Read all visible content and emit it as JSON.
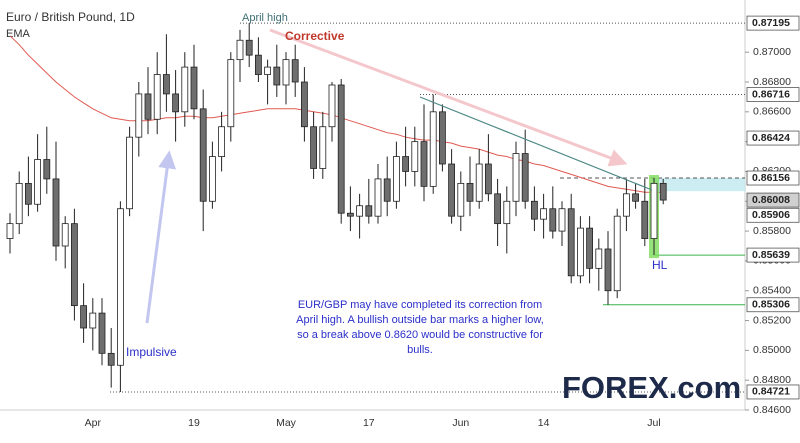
{
  "chart_data": {
    "type": "candlestick",
    "title": "Euro / British Pound, 1D",
    "indicator_label": "EMA",
    "categories": [
      null,
      null,
      null,
      null,
      null,
      null,
      null,
      null,
      null,
      "Apr",
      null,
      null,
      null,
      null,
      null,
      null,
      null,
      null,
      null,
      null,
      "19",
      null,
      null,
      null,
      null,
      null,
      null,
      null,
      null,
      null,
      "May",
      null,
      null,
      null,
      null,
      null,
      null,
      null,
      null,
      "17",
      null,
      null,
      null,
      null,
      null,
      null,
      null,
      null,
      null,
      "Jun",
      null,
      null,
      null,
      null,
      null,
      null,
      null,
      null,
      "14",
      null,
      null,
      null,
      null,
      null,
      null,
      null,
      null,
      null,
      null,
      null,
      "Jul",
      null
    ],
    "open": [
      0.8575,
      0.8585,
      0.8612,
      0.8598,
      0.8628,
      0.8615,
      0.857,
      0.8585,
      0.853,
      0.8515,
      0.8525,
      0.8498,
      0.849,
      0.8595,
      0.8643,
      0.8672,
      0.8655,
      0.8685,
      0.8672,
      0.866,
      0.869,
      0.8662,
      0.86,
      0.863,
      0.865,
      0.8695,
      0.8708,
      0.8698,
      0.8685,
      0.869,
      0.8678,
      0.8695,
      0.868,
      0.865,
      0.8622,
      0.865,
      0.8678,
      0.8592,
      0.859,
      0.8597,
      0.859,
      0.8615,
      0.86,
      0.863,
      0.862,
      0.864,
      0.861,
      0.866,
      0.8625,
      0.859,
      0.8612,
      0.86,
      0.8625,
      0.8605,
      0.8585,
      0.86,
      0.8632,
      0.86,
      0.8588,
      0.8595,
      0.858,
      0.8595,
      0.855,
      0.8582,
      0.8555,
      0.8568,
      0.854,
      0.859,
      0.8605,
      0.86,
      0.8575,
      0.8612
    ],
    "high": [
      0.8592,
      0.862,
      0.863,
      0.8645,
      0.865,
      0.864,
      0.859,
      0.8595,
      0.8545,
      0.8535,
      0.8535,
      0.8515,
      0.86,
      0.865,
      0.868,
      0.869,
      0.87,
      0.8712,
      0.8688,
      0.87,
      0.8705,
      0.8675,
      0.864,
      0.866,
      0.87,
      0.8715,
      0.87195,
      0.871,
      0.8695,
      0.8705,
      0.87,
      0.8705,
      0.869,
      0.866,
      0.866,
      0.868,
      0.8682,
      0.861,
      0.8605,
      0.8615,
      0.8625,
      0.863,
      0.864,
      0.865,
      0.865,
      0.8665,
      0.86716,
      0.8665,
      0.8635,
      0.862,
      0.863,
      0.8635,
      0.8645,
      0.8615,
      0.861,
      0.864,
      0.8648,
      0.861,
      0.8605,
      0.861,
      0.86,
      0.8605,
      0.859,
      0.859,
      0.8575,
      0.858,
      0.8595,
      0.8615,
      0.8612,
      0.8615,
      0.86156,
      0.8615
    ],
    "low": [
      0.8565,
      0.8578,
      0.859,
      0.8593,
      0.8605,
      0.856,
      0.8555,
      0.852,
      0.8505,
      0.85,
      0.849,
      0.8475,
      0.84721,
      0.859,
      0.863,
      0.8645,
      0.8645,
      0.866,
      0.864,
      0.865,
      0.8655,
      0.858,
      0.8595,
      0.862,
      0.864,
      0.868,
      0.869,
      0.868,
      0.8665,
      0.867,
      0.8665,
      0.867,
      0.864,
      0.8615,
      0.8615,
      0.864,
      0.8585,
      0.858,
      0.8575,
      0.8585,
      0.8585,
      0.859,
      0.8595,
      0.861,
      0.861,
      0.86,
      0.8605,
      0.862,
      0.8585,
      0.858,
      0.859,
      0.8595,
      0.86,
      0.857,
      0.8565,
      0.859,
      0.8595,
      0.858,
      0.8575,
      0.8575,
      0.857,
      0.8545,
      0.8545,
      0.8545,
      0.854,
      0.85306,
      0.8535,
      0.858,
      0.8595,
      0.857,
      0.85639,
      0.8598
    ],
    "close": [
      0.8585,
      0.8612,
      0.8598,
      0.8628,
      0.8615,
      0.857,
      0.8585,
      0.853,
      0.8515,
      0.8525,
      0.8498,
      0.849,
      0.8595,
      0.8643,
      0.8672,
      0.8655,
      0.8685,
      0.8672,
      0.866,
      0.869,
      0.8662,
      0.86,
      0.863,
      0.865,
      0.8695,
      0.8708,
      0.8698,
      0.8685,
      0.869,
      0.8678,
      0.8695,
      0.868,
      0.865,
      0.8622,
      0.865,
      0.8678,
      0.8592,
      0.859,
      0.8597,
      0.859,
      0.8615,
      0.86,
      0.863,
      0.862,
      0.864,
      0.861,
      0.866,
      0.8625,
      0.859,
      0.8612,
      0.86,
      0.8625,
      0.8605,
      0.8585,
      0.86,
      0.8632,
      0.86,
      0.8588,
      0.8595,
      0.858,
      0.8595,
      0.855,
      0.8582,
      0.8555,
      0.8568,
      0.854,
      0.859,
      0.8605,
      0.86,
      0.8575,
      0.8612,
      0.86008
    ],
    "up_color": "#ffffff",
    "down_color": "#6e6e6e",
    "ema": {
      "color": "#e05a52",
      "values": [
        0.8711,
        0.8705,
        0.8698,
        0.8692,
        0.8686,
        0.868,
        0.8675,
        0.867,
        0.8666,
        0.8662,
        0.8659,
        0.8656,
        0.8655,
        0.8654,
        0.8654,
        0.8654,
        0.8655,
        0.8656,
        0.8656,
        0.8657,
        0.8657,
        0.8656,
        0.8656,
        0.8657,
        0.8658,
        0.8659,
        0.866,
        0.8661,
        0.8662,
        0.8662,
        0.8662,
        0.8662,
        0.8661,
        0.866,
        0.8659,
        0.8658,
        0.8656,
        0.8654,
        0.8652,
        0.865,
        0.8648,
        0.8646,
        0.8645,
        0.8643,
        0.8642,
        0.8641,
        0.8641,
        0.864,
        0.8639,
        0.8637,
        0.8636,
        0.8635,
        0.8633,
        0.8631,
        0.863,
        0.8628,
        0.8627,
        0.8625,
        0.8624,
        0.8622,
        0.862,
        0.8618,
        0.8616,
        0.8614,
        0.8612,
        0.861,
        0.8609,
        0.8608,
        0.8607,
        0.8606,
        0.8606,
        0.8606
      ]
    },
    "ylim": [
      0.846,
      0.8735
    ],
    "yticks": [
      {
        "value": 0.846,
        "label": "0.84600"
      },
      {
        "value": 0.848,
        "label": "0.84800"
      },
      {
        "value": 0.85,
        "label": "0.85000"
      },
      {
        "value": 0.852,
        "label": "0.85200"
      },
      {
        "value": 0.854,
        "label": "0.85400"
      },
      {
        "value": 0.856,
        "label": "0.85600"
      },
      {
        "value": 0.858,
        "label": "0.85800"
      },
      {
        "value": 0.86,
        "label": "0.86000"
      },
      {
        "value": 0.862,
        "label": "0.86200"
      },
      {
        "value": 0.864,
        "label": "0.86400"
      },
      {
        "value": 0.866,
        "label": "0.86600"
      },
      {
        "value": 0.868,
        "label": "0.86800"
      },
      {
        "value": 0.87,
        "label": "0.87000"
      }
    ],
    "levels": [
      {
        "value": 0.87195,
        "label": "0.87195",
        "style": "dotted"
      },
      {
        "value": 0.86716,
        "label": "0.86716",
        "style": "dotted"
      },
      {
        "value": 0.86424,
        "label": "0.86424",
        "style": "none"
      },
      {
        "value": 0.86156,
        "label": "0.86156",
        "style": "dashed"
      },
      {
        "value": 0.86008,
        "label": "0.86008",
        "style": "current"
      },
      {
        "value": 0.85906,
        "label": "0.85906",
        "style": "none"
      },
      {
        "value": 0.85639,
        "label": "0.85639",
        "style": "green"
      },
      {
        "value": 0.85306,
        "label": "0.85306",
        "style": "green"
      },
      {
        "value": 0.84721,
        "label": "0.84721",
        "style": "dotted"
      }
    ],
    "zone": [
      0.86068,
      0.86156
    ],
    "annotations": {
      "april_high": "April high",
      "corrective": "Corrective",
      "impulsive": "Impulsive",
      "hl": "HL",
      "note": [
        "EUR/GBP may have completed its correction from",
        "April high. A bullish outside bar marks a higher low,",
        "so a break above 0.8620 would be constructive for",
        "bulls."
      ]
    },
    "logo": "FOREX.com",
    "grid": false
  }
}
